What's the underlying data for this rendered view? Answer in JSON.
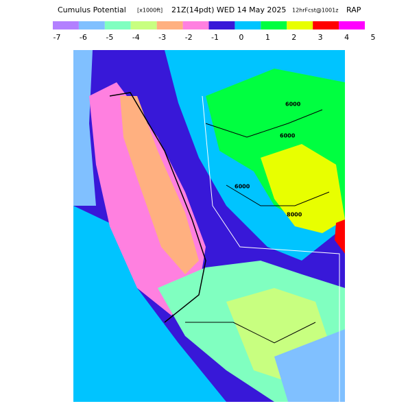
{
  "header": {
    "title": "Cumulus Potential",
    "units": "[x1000ft]",
    "valid": "21Z(14pdt) WED 14 May 2025",
    "forecast": "12hrFcst@1001z",
    "model": "RAP"
  },
  "legend": {
    "colors": [
      "#b380ff",
      "#80c0ff",
      "#80ffc0",
      "#c8ff80",
      "#ffb080",
      "#ff80e0",
      "#3818d8",
      "#00c4ff",
      "#00ff40",
      "#e8ff00",
      "#ff0000",
      "#ff00ff"
    ],
    "labels": [
      "-7",
      "-6",
      "-5",
      "-4",
      "-3",
      "-2",
      "-1",
      "0",
      "1",
      "2",
      "3",
      "4",
      "5"
    ]
  },
  "map": {
    "contour_labels": [
      "6000",
      "6000",
      "6000",
      "8000"
    ]
  }
}
